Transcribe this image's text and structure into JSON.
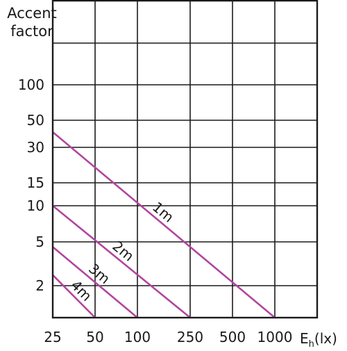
{
  "chart_data": {
    "type": "line",
    "title": "",
    "ylabel_lines": [
      "Accent",
      "factor"
    ],
    "xlabel_main": "E",
    "xlabel_sub": "h",
    "xlabel_unit": "(lx)",
    "x_ticks": [
      {
        "label": "25",
        "value": 25
      },
      {
        "label": "50",
        "value": 50
      },
      {
        "label": "100",
        "value": 100
      },
      {
        "label": "250",
        "value": 250
      },
      {
        "label": "500",
        "value": 500
      },
      {
        "label": "1000",
        "value": 1000
      }
    ],
    "y_ticks": [
      {
        "label": "2",
        "value": 2
      },
      {
        "label": "5",
        "value": 5
      },
      {
        "label": "10",
        "value": 10
      },
      {
        "label": "15",
        "value": 15
      },
      {
        "label": "30",
        "value": 30
      },
      {
        "label": "50",
        "value": 50
      },
      {
        "label": "100",
        "value": 100
      }
    ],
    "x_scale": "categorical-log",
    "y_scale": "categorical-log",
    "grid": true,
    "line_color": "#b0469e",
    "series": [
      {
        "name": "1m",
        "points": [
          {
            "x": 25,
            "y": 40
          },
          {
            "x": 1000,
            "y": 1
          }
        ]
      },
      {
        "name": "2m",
        "points": [
          {
            "x": 25,
            "y": 10
          },
          {
            "x": 250,
            "y": 1
          }
        ]
      },
      {
        "name": "3m",
        "points": [
          {
            "x": 25,
            "y": 4.5
          },
          {
            "x": 100,
            "y": 1
          }
        ]
      },
      {
        "name": "4m",
        "points": [
          {
            "x": 25,
            "y": 2.5
          },
          {
            "x": 50,
            "y": 1
          }
        ]
      }
    ]
  }
}
